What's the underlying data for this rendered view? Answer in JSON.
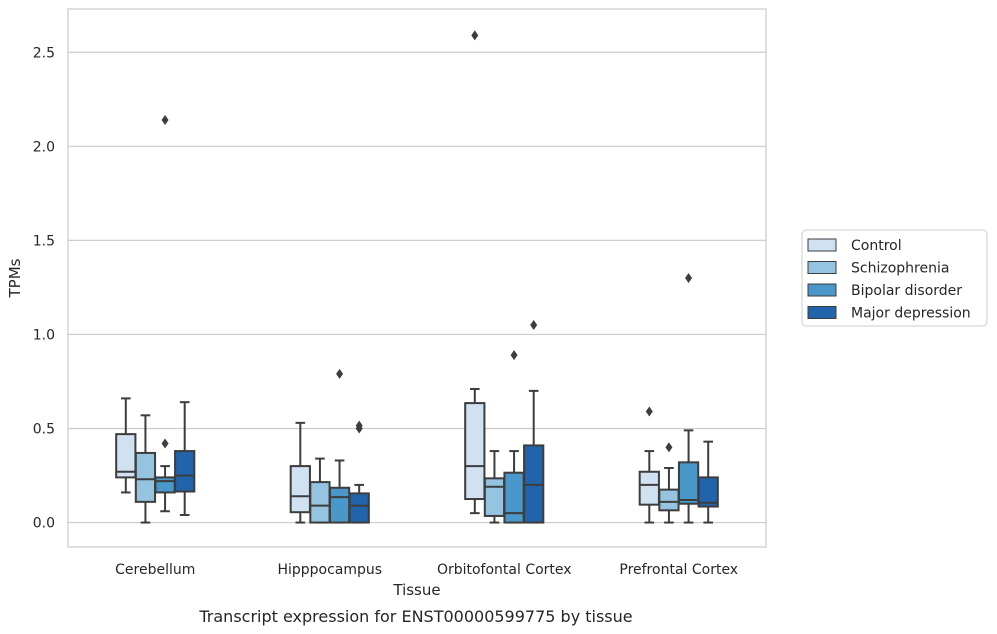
{
  "caption": "Transcript expression for ENST00000599775 by tissue",
  "chart_data": {
    "type": "box",
    "title": "",
    "xlabel": "Tissue",
    "ylabel": "TPMs",
    "ylim": [
      -0.13,
      2.73
    ],
    "yticks": [
      0.0,
      0.5,
      1.0,
      1.5,
      2.0,
      2.5
    ],
    "ytick_labels": [
      "0.0",
      "0.5",
      "1.0",
      "1.5",
      "2.0",
      "2.5"
    ],
    "grid": "horizontal",
    "legend_position": "right",
    "categories": [
      "Cerebellum",
      "Hipppocampus",
      "Orbitofontal Cortex",
      "Prefrontal Cortex"
    ],
    "series": [
      {
        "name": "Control",
        "color": "#d0e1f2",
        "boxes": [
          {
            "whislo": 0.16,
            "q1": 0.24,
            "med": 0.27,
            "q3": 0.47,
            "whishi": 0.66,
            "fliers": []
          },
          {
            "whislo": 0.0,
            "q1": 0.055,
            "med": 0.14,
            "q3": 0.3,
            "whishi": 0.53,
            "fliers": []
          },
          {
            "whislo": 0.05,
            "q1": 0.125,
            "med": 0.3,
            "q3": 0.635,
            "whishi": 0.71,
            "fliers": [
              2.59
            ]
          },
          {
            "whislo": 0.0,
            "q1": 0.095,
            "med": 0.2,
            "q3": 0.27,
            "whishi": 0.38,
            "fliers": [
              0.59
            ]
          }
        ]
      },
      {
        "name": "Schizophrenia",
        "color": "#94c4df",
        "boxes": [
          {
            "whislo": 0.0,
            "q1": 0.11,
            "med": 0.23,
            "q3": 0.37,
            "whishi": 0.57,
            "fliers": []
          },
          {
            "whislo": 0.0,
            "q1": 0.0,
            "med": 0.09,
            "q3": 0.215,
            "whishi": 0.34,
            "fliers": []
          },
          {
            "whislo": 0.0,
            "q1": 0.035,
            "med": 0.19,
            "q3": 0.235,
            "whishi": 0.38,
            "fliers": []
          },
          {
            "whislo": 0.0,
            "q1": 0.065,
            "med": 0.11,
            "q3": 0.175,
            "whishi": 0.29,
            "fliers": [
              0.4
            ]
          }
        ]
      },
      {
        "name": "Bipolar disorder",
        "color": "#4a98c9",
        "boxes": [
          {
            "whislo": 0.06,
            "q1": 0.16,
            "med": 0.22,
            "q3": 0.24,
            "whishi": 0.3,
            "fliers": [
              0.42,
              2.14
            ]
          },
          {
            "whislo": 0.0,
            "q1": 0.0,
            "med": 0.135,
            "q3": 0.185,
            "whishi": 0.33,
            "fliers": [
              0.79
            ]
          },
          {
            "whislo": 0.0,
            "q1": 0.0,
            "med": 0.05,
            "q3": 0.265,
            "whishi": 0.38,
            "fliers": [
              0.89
            ]
          },
          {
            "whislo": 0.0,
            "q1": 0.1,
            "med": 0.12,
            "q3": 0.32,
            "whishi": 0.49,
            "fliers": [
              1.3
            ]
          }
        ]
      },
      {
        "name": "Major depression",
        "color": "#2164ab",
        "boxes": [
          {
            "whislo": 0.04,
            "q1": 0.165,
            "med": 0.25,
            "q3": 0.38,
            "whishi": 0.64,
            "fliers": []
          },
          {
            "whislo": 0.0,
            "q1": 0.0,
            "med": 0.09,
            "q3": 0.155,
            "whishi": 0.2,
            "fliers": [
              0.5,
              0.515
            ]
          },
          {
            "whislo": 0.0,
            "q1": 0.0,
            "med": 0.2,
            "q3": 0.41,
            "whishi": 0.7,
            "fliers": [
              1.05
            ]
          },
          {
            "whislo": 0.0,
            "q1": 0.085,
            "med": 0.105,
            "q3": 0.24,
            "whishi": 0.43,
            "fliers": []
          }
        ]
      }
    ]
  }
}
